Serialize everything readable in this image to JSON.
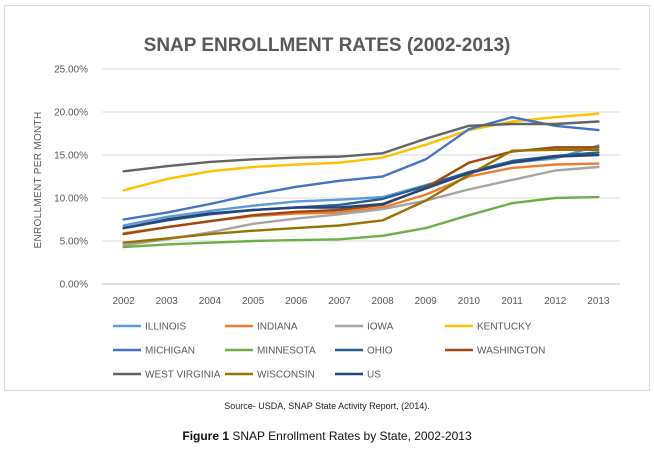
{
  "chart_data": {
    "type": "line",
    "title": "SNAP ENROLLMENT RATES (2002-2013)",
    "ylabel": "ENROLLMENT PER MONTH",
    "xlabel": "",
    "x": [
      "2002",
      "2003",
      "2004",
      "2005",
      "2006",
      "2007",
      "2008",
      "2009",
      "2010",
      "2011",
      "2012",
      "2013"
    ],
    "ylim": [
      0,
      25
    ],
    "yticks": [
      "0.00%",
      "5.00%",
      "10.00%",
      "15.00%",
      "20.00%",
      "25.00%"
    ],
    "grid": true,
    "legend": "bottom",
    "series": [
      {
        "name": "ILLINOIS",
        "color": "#5b9bd5",
        "values": [
          6.8,
          7.8,
          8.5,
          9.1,
          9.6,
          9.8,
          10.1,
          11.5,
          13.0,
          14.1,
          14.6,
          16.1
        ]
      },
      {
        "name": "INDIANA",
        "color": "#ed7d31",
        "values": [
          5.9,
          6.6,
          7.3,
          7.9,
          8.2,
          8.3,
          8.9,
          10.4,
          12.5,
          13.5,
          13.9,
          14.0
        ]
      },
      {
        "name": "IOWA",
        "color": "#a5a5a5",
        "values": [
          4.5,
          5.2,
          6.0,
          7.0,
          7.6,
          8.1,
          8.7,
          9.7,
          11.0,
          12.1,
          13.2,
          13.6
        ]
      },
      {
        "name": "KENTUCKY",
        "color": "#ffc000",
        "values": [
          10.9,
          12.2,
          13.1,
          13.6,
          13.9,
          14.1,
          14.7,
          16.2,
          17.9,
          18.9,
          19.4,
          19.8
        ]
      },
      {
        "name": "MICHIGAN",
        "color": "#4472c4",
        "values": [
          7.5,
          8.3,
          9.3,
          10.4,
          11.3,
          12.0,
          12.5,
          14.5,
          18.0,
          19.4,
          18.4,
          17.9
        ]
      },
      {
        "name": "MINNESOTA",
        "color": "#70ad47",
        "values": [
          4.3,
          4.6,
          4.8,
          5.0,
          5.1,
          5.2,
          5.6,
          6.5,
          8.0,
          9.4,
          10.0,
          10.1
        ]
      },
      {
        "name": "OHIO",
        "color": "#255e91",
        "values": [
          6.5,
          7.4,
          8.1,
          8.6,
          8.9,
          9.2,
          9.9,
          11.4,
          13.0,
          14.3,
          14.9,
          15.3
        ]
      },
      {
        "name": "WASHINGTON",
        "color": "#9e480e",
        "values": [
          5.8,
          6.6,
          7.3,
          8.0,
          8.4,
          8.6,
          9.2,
          11.2,
          14.1,
          15.4,
          15.9,
          15.9
        ]
      },
      {
        "name": "WEST VIRGINIA",
        "color": "#636363",
        "values": [
          13.1,
          13.7,
          14.2,
          14.5,
          14.7,
          14.8,
          15.2,
          16.9,
          18.4,
          18.6,
          18.6,
          18.9
        ]
      },
      {
        "name": "WISCONSIN",
        "color": "#997300",
        "values": [
          4.8,
          5.3,
          5.8,
          6.2,
          6.5,
          6.8,
          7.4,
          9.7,
          12.7,
          15.5,
          15.6,
          15.6
        ]
      },
      {
        "name": "US",
        "color": "#264478",
        "values": [
          6.5,
          7.5,
          8.2,
          8.6,
          8.9,
          8.9,
          9.3,
          11.1,
          12.9,
          14.1,
          14.8,
          15.0
        ]
      }
    ]
  },
  "source_text": "Source- USDA, SNAP State Activity Report, (2014).",
  "caption": {
    "label": "Figure 1",
    "text": " SNAP Enrollment Rates by State, 2002-2013"
  }
}
